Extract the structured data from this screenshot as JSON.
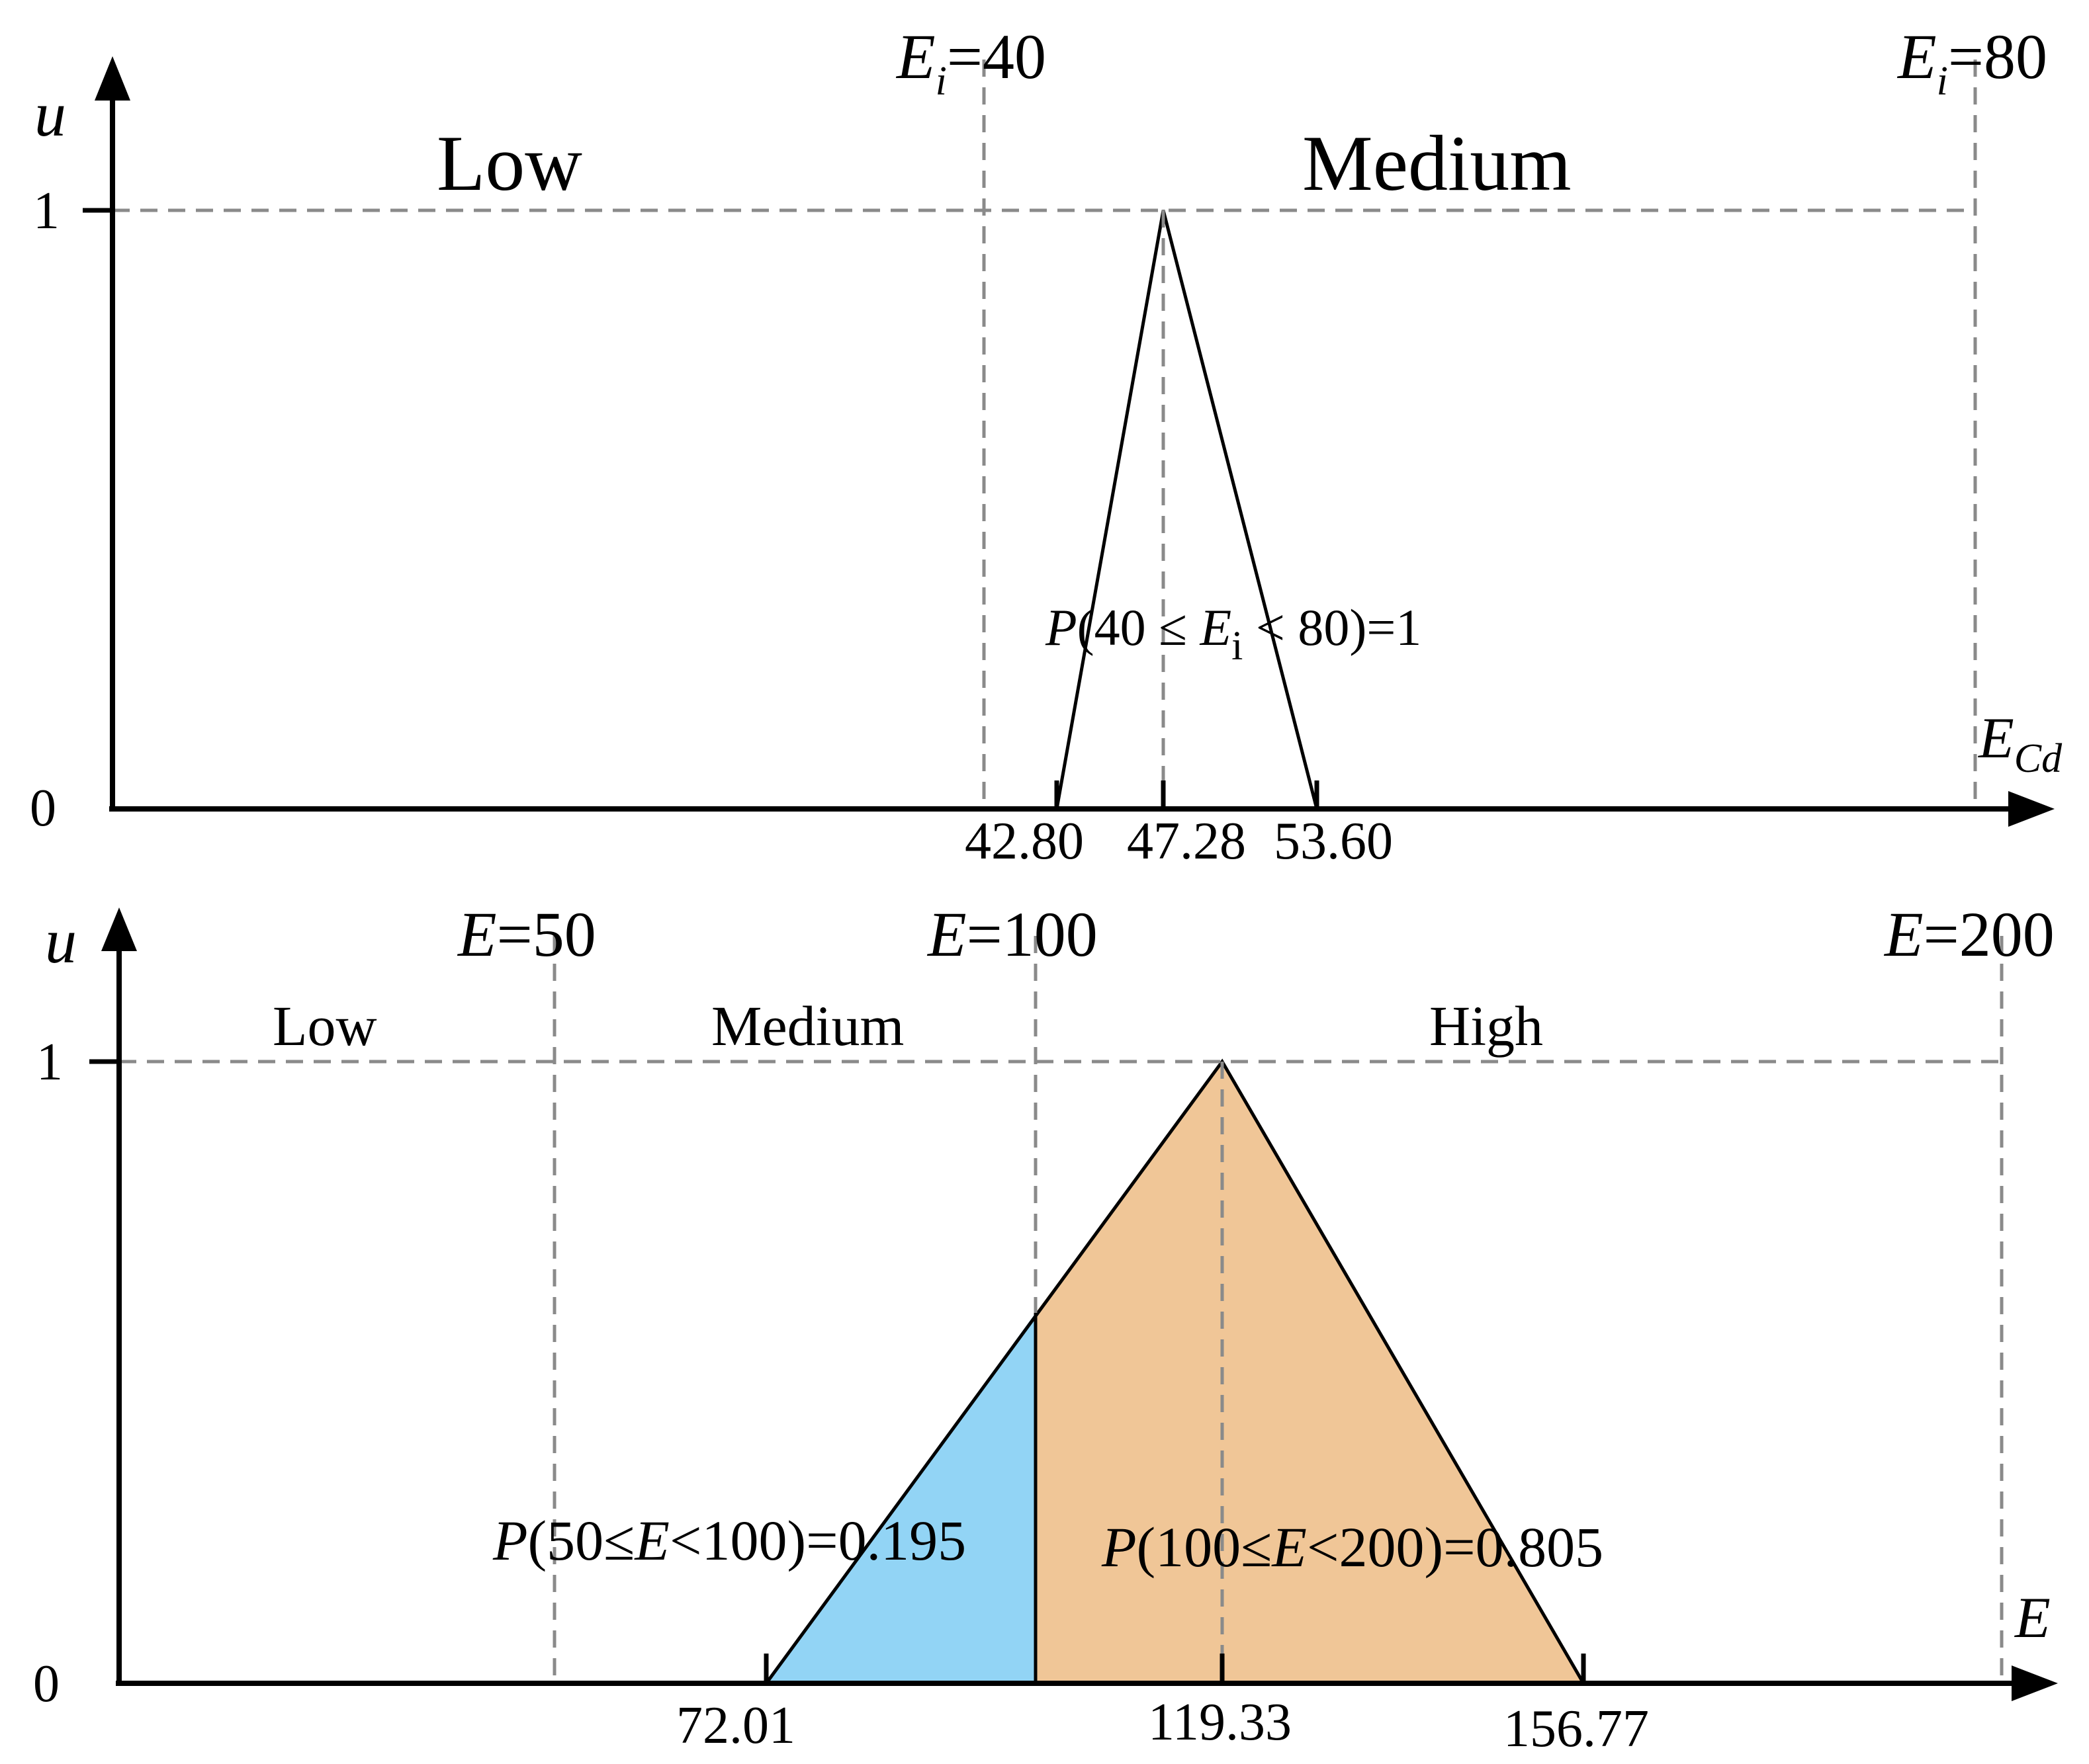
{
  "colors": {
    "blue": "#92D4F5",
    "orange": "#F0C697",
    "axis": "#000000",
    "grid": "#8a8a8a"
  },
  "top_panel": {
    "y_axis_label": "u",
    "y_tick_1": "1",
    "y_tick_0": "0",
    "x_axis_label_main": "E",
    "x_axis_label_sub": "Cd",
    "boundary_1": {
      "var": "E",
      "sub": "i",
      "rest": "=40"
    },
    "boundary_2": {
      "var": "E",
      "sub": "i",
      "rest": "=80"
    },
    "category_low": "Low",
    "category_medium": "Medium",
    "triangle": {
      "left": 42.8,
      "peak": 47.28,
      "right": 53.6
    },
    "tick_labels": [
      "42.80",
      "47.28",
      "53.60"
    ],
    "probability": {
      "p": "P",
      "open": "(40 ≤ ",
      "var": "E",
      "sub": "i",
      "close": " < 80)",
      "result": "=1"
    }
  },
  "bottom_panel": {
    "y_axis_label": "u",
    "y_tick_1": "1",
    "y_tick_0": "0",
    "x_axis_label": "E",
    "boundary_1": {
      "var": "E",
      "rest": "=50"
    },
    "boundary_2": {
      "var": "E",
      "rest": "=100"
    },
    "boundary_3": {
      "var": "E",
      "rest": "=200"
    },
    "category_low": "Low",
    "category_medium": "Medium",
    "category_high": "High",
    "triangle": {
      "left": 72.01,
      "peak": 119.33,
      "right": 156.77
    },
    "tick_labels": [
      "72.01",
      "119.33",
      "156.77"
    ],
    "probability_medium": {
      "p": "P",
      "open": "(50≤",
      "var": "E",
      "close": "<100)=0.195",
      "value": 0.195
    },
    "probability_high": {
      "p": "P",
      "open": "(100≤",
      "var": "E",
      "close": "<200)=0.805",
      "value": 0.805
    }
  }
}
